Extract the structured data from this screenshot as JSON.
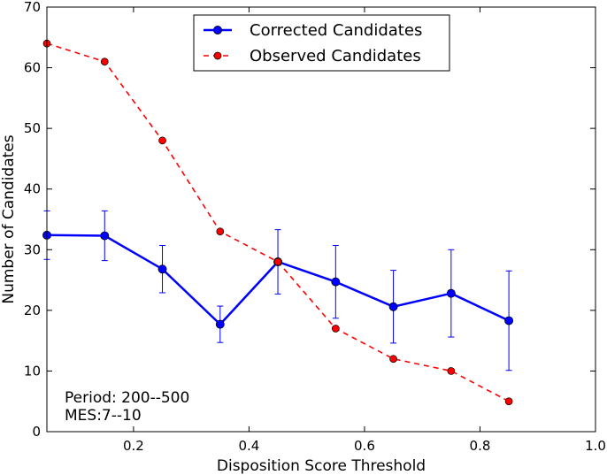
{
  "chart_data": {
    "type": "line",
    "xlabel": "Disposition Score Threshold",
    "ylabel": "Number of Candidates",
    "xlim": [
      0.05,
      1.0
    ],
    "ylim": [
      0,
      70
    ],
    "x_ticks": [
      0.2,
      0.4,
      0.6,
      0.8,
      1.0
    ],
    "x_tick_labels": [
      "0.2",
      "0.4",
      "0.6",
      "0.8",
      "1.0"
    ],
    "y_ticks": [
      0,
      10,
      20,
      30,
      40,
      50,
      60,
      70
    ],
    "y_tick_labels": [
      "0",
      "10",
      "20",
      "30",
      "40",
      "50",
      "60",
      "70"
    ],
    "grid": false,
    "legend_position": "top-center",
    "x": [
      0.05,
      0.15,
      0.25,
      0.35,
      0.45,
      0.55,
      0.65,
      0.75,
      0.85
    ],
    "series": [
      {
        "name": "Corrected Candidates",
        "color": "#0000ff",
        "line_style": "solid",
        "values": [
          32.4,
          32.3,
          26.8,
          17.7,
          28.0,
          24.7,
          20.6,
          22.8,
          18.3
        ],
        "error": [
          4.0,
          4.1,
          3.9,
          3.0,
          5.3,
          6.0,
          6.0,
          7.2,
          8.2
        ]
      },
      {
        "name": "Observed Candidates",
        "color": "#ff0000",
        "line_style": "dashed",
        "values": [
          64,
          61,
          48,
          33,
          28,
          17,
          12,
          10,
          5
        ]
      }
    ],
    "annotations": [
      "Period: 200--500",
      "MES:7--10"
    ]
  }
}
